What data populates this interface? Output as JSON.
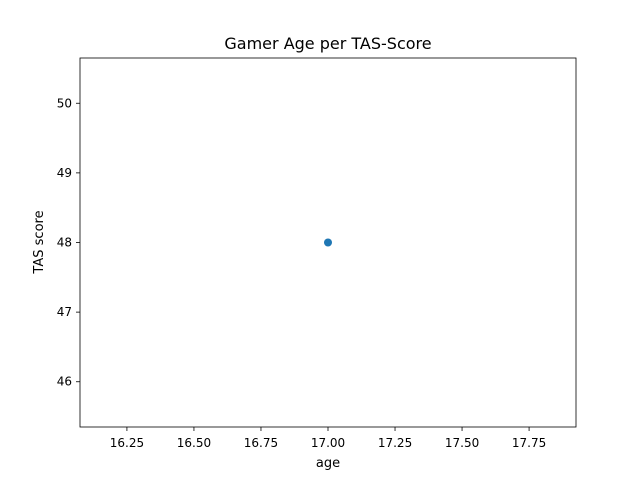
{
  "chart_data": {
    "type": "scatter",
    "title": "Gamer Age per TAS-Score",
    "xlabel": "age",
    "ylabel": "TAS score",
    "xlim": [
      16.075,
      17.925
    ],
    "ylim": [
      45.35,
      50.65
    ],
    "xticks": [
      16.25,
      16.5,
      16.75,
      17.0,
      17.25,
      17.5,
      17.75
    ],
    "xtick_labels": [
      "16.25",
      "16.50",
      "16.75",
      "17.00",
      "17.25",
      "17.50",
      "17.75"
    ],
    "yticks": [
      46,
      47,
      48,
      49,
      50
    ],
    "ytick_labels": [
      "46",
      "47",
      "48",
      "49",
      "50"
    ],
    "grid": false,
    "series": [
      {
        "points": [
          {
            "x": 17.0,
            "y": 48
          }
        ],
        "color": "#1f77b4"
      }
    ]
  }
}
